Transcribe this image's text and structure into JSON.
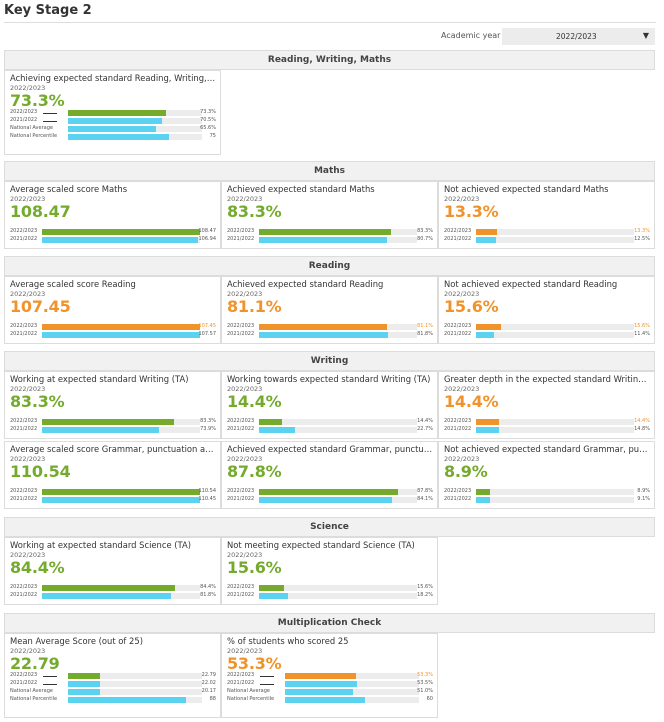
{
  "page": {
    "title": "Key Stage 2"
  },
  "filter": {
    "label": "Academic year",
    "value": "2022/2023"
  },
  "sections": [
    {
      "title": "Reading, Writing, Maths",
      "cards": [
        {
          "title": "Achieving expected standard Reading, Writing, Maths (...",
          "year": "2022/2023",
          "value": "73.3%",
          "color": "#74ab2d",
          "rows": [
            {
              "label": "2022/2023",
              "value": "73.3%",
              "fraction": 0.733,
              "bar": "green"
            },
            {
              "label": "2021/2022",
              "value": "70.5%",
              "fraction": 0.705,
              "bar": "cyan"
            },
            {
              "label": "National Average",
              "value": "65.6%",
              "fraction": 0.656,
              "bar": "cyan"
            },
            {
              "label": "National Percentile",
              "value": "75",
              "fraction": 0.75,
              "bar": "cyan"
            }
          ]
        }
      ]
    },
    {
      "title": "Maths",
      "cards": [
        {
          "title": "Average scaled score Maths",
          "year": "2022/2023",
          "value": "108.47",
          "color": "#74ab2d",
          "rows": [
            {
              "label": "2022/2023",
              "value": "108.47",
              "fraction": 1.0,
              "bar": "green"
            },
            {
              "label": "2021/2022",
              "value": "106.94",
              "fraction": 0.985,
              "bar": "cyan"
            }
          ]
        },
        {
          "title": "Achieved expected standard Maths",
          "year": "2022/2023",
          "value": "83.3%",
          "color": "#74ab2d",
          "rows": [
            {
              "label": "2022/2023",
              "value": "83.3%",
              "fraction": 0.833,
              "bar": "green"
            },
            {
              "label": "2021/2022",
              "value": "80.7%",
              "fraction": 0.807,
              "bar": "cyan"
            }
          ]
        },
        {
          "title": "Not achieved expected standard Maths",
          "year": "2022/2023",
          "value": "13.3%",
          "color": "#f0932b",
          "rows": [
            {
              "label": "2022/2023",
              "value": "13.3%",
              "fraction": 0.133,
              "bar": "orange",
              "value_color": "orange"
            },
            {
              "label": "2021/2022",
              "value": "12.5%",
              "fraction": 0.125,
              "bar": "cyan"
            }
          ]
        }
      ]
    },
    {
      "title": "Reading",
      "cards": [
        {
          "title": "Average scaled score Reading",
          "year": "2022/2023",
          "value": "107.45",
          "color": "#f0932b",
          "rows": [
            {
              "label": "2022/2023",
              "value": "107.45",
              "fraction": 1.0,
              "bar": "orange",
              "value_color": "orange"
            },
            {
              "label": "2021/2022",
              "value": "107.57",
              "fraction": 1.0,
              "bar": "cyan"
            }
          ]
        },
        {
          "title": "Achieved expected standard Reading",
          "year": "2022/2023",
          "value": "81.1%",
          "color": "#f0932b",
          "rows": [
            {
              "label": "2022/2023",
              "value": "81.1%",
              "fraction": 0.811,
              "bar": "orange",
              "value_color": "orange"
            },
            {
              "label": "2021/2022",
              "value": "81.8%",
              "fraction": 0.818,
              "bar": "cyan"
            }
          ]
        },
        {
          "title": "Not achieved expected standard Reading",
          "year": "2022/2023",
          "value": "15.6%",
          "color": "#f0932b",
          "rows": [
            {
              "label": "2022/2023",
              "value": "15.6%",
              "fraction": 0.156,
              "bar": "orange",
              "value_color": "orange"
            },
            {
              "label": "2021/2022",
              "value": "11.4%",
              "fraction": 0.114,
              "bar": "cyan"
            }
          ]
        }
      ]
    },
    {
      "title": "Writing",
      "cards": [
        {
          "title": "Working at expected standard Writing (TA)",
          "year": "2022/2023",
          "value": "83.3%",
          "color": "#74ab2d",
          "rows": [
            {
              "label": "2022/2023",
              "value": "83.3%",
              "fraction": 0.833,
              "bar": "green"
            },
            {
              "label": "2021/2022",
              "value": "73.9%",
              "fraction": 0.739,
              "bar": "cyan"
            }
          ]
        },
        {
          "title": "Working towards expected standard Writing (TA)",
          "year": "2022/2023",
          "value": "14.4%",
          "color": "#74ab2d",
          "rows": [
            {
              "label": "2022/2023",
              "value": "14.4%",
              "fraction": 0.144,
              "bar": "green"
            },
            {
              "label": "2021/2022",
              "value": "22.7%",
              "fraction": 0.227,
              "bar": "cyan"
            }
          ]
        },
        {
          "title": "Greater depth in the expected standard Writing (TA)",
          "year": "2022/2023",
          "value": "14.4%",
          "color": "#f0932b",
          "rows": [
            {
              "label": "2022/2023",
              "value": "14.4%",
              "fraction": 0.144,
              "bar": "orange",
              "value_color": "orange"
            },
            {
              "label": "2021/2022",
              "value": "14.8%",
              "fraction": 0.148,
              "bar": "cyan"
            }
          ]
        },
        {
          "title": "Average scaled score Grammar, punctuation and spelling",
          "year": "2022/2023",
          "value": "110.54",
          "color": "#74ab2d",
          "rows": [
            {
              "label": "2022/2023",
              "value": "110.54",
              "fraction": 1.0,
              "bar": "green"
            },
            {
              "label": "2021/2022",
              "value": "110.45",
              "fraction": 1.0,
              "bar": "cyan"
            }
          ]
        },
        {
          "title": "Achieved expected standard Grammar, punctuation an...",
          "year": "2022/2023",
          "value": "87.8%",
          "color": "#74ab2d",
          "rows": [
            {
              "label": "2022/2023",
              "value": "87.8%",
              "fraction": 0.878,
              "bar": "green"
            },
            {
              "label": "2021/2022",
              "value": "84.1%",
              "fraction": 0.841,
              "bar": "cyan"
            }
          ]
        },
        {
          "title": "Not achieved expected standard Grammar, punctuation...",
          "year": "2022/2023",
          "value": "8.9%",
          "color": "#74ab2d",
          "rows": [
            {
              "label": "2022/2023",
              "value": "8.9%",
              "fraction": 0.089,
              "bar": "green"
            },
            {
              "label": "2021/2022",
              "value": "9.1%",
              "fraction": 0.091,
              "bar": "cyan"
            }
          ]
        }
      ]
    },
    {
      "title": "Science",
      "cards": [
        {
          "title": "Working at expected standard Science (TA)",
          "year": "2022/2023",
          "value": "84.4%",
          "color": "#74ab2d",
          "rows": [
            {
              "label": "2022/2023",
              "value": "84.4%",
              "fraction": 0.844,
              "bar": "green"
            },
            {
              "label": "2021/2022",
              "value": "81.8%",
              "fraction": 0.818,
              "bar": "cyan"
            }
          ]
        },
        {
          "title": "Not meeting expected standard Science (TA)",
          "year": "2022/2023",
          "value": "15.6%",
          "color": "#74ab2d",
          "rows": [
            {
              "label": "2022/2023",
              "value": "15.6%",
              "fraction": 0.156,
              "bar": "green"
            },
            {
              "label": "2021/2022",
              "value": "18.2%",
              "fraction": 0.182,
              "bar": "cyan"
            }
          ]
        }
      ]
    },
    {
      "title": "Multiplication Check",
      "cards": [
        {
          "title": "Mean Average Score (out of 25)",
          "year": "2022/2023",
          "value": "22.79",
          "color": "#74ab2d",
          "rows": [
            {
              "label": "2022/2023",
              "value": "22.79",
              "fraction": 0.24,
              "bar": "green"
            },
            {
              "label": "2021/2022",
              "value": "22.02",
              "fraction": 0.24,
              "bar": "cyan"
            },
            {
              "label": "National Average",
              "value": "20.17",
              "fraction": 0.24,
              "bar": "cyan"
            },
            {
              "label": "National Percentile",
              "value": "88",
              "fraction": 0.88,
              "bar": "cyan"
            }
          ]
        },
        {
          "title": "% of students who scored 25",
          "year": "2022/2023",
          "value": "53.3%",
          "color": "#f0932b",
          "rows": [
            {
              "label": "2022/2023",
              "value": "53.3%",
              "fraction": 0.533,
              "bar": "orange",
              "value_color": "orange"
            },
            {
              "label": "2021/2022",
              "value": "53.5%",
              "fraction": 0.535,
              "bar": "cyan"
            },
            {
              "label": "National Average",
              "value": "51.0%",
              "fraction": 0.51,
              "bar": "cyan"
            },
            {
              "label": "National Percentile",
              "value": "60",
              "fraction": 0.6,
              "bar": "cyan"
            }
          ]
        }
      ]
    }
  ]
}
